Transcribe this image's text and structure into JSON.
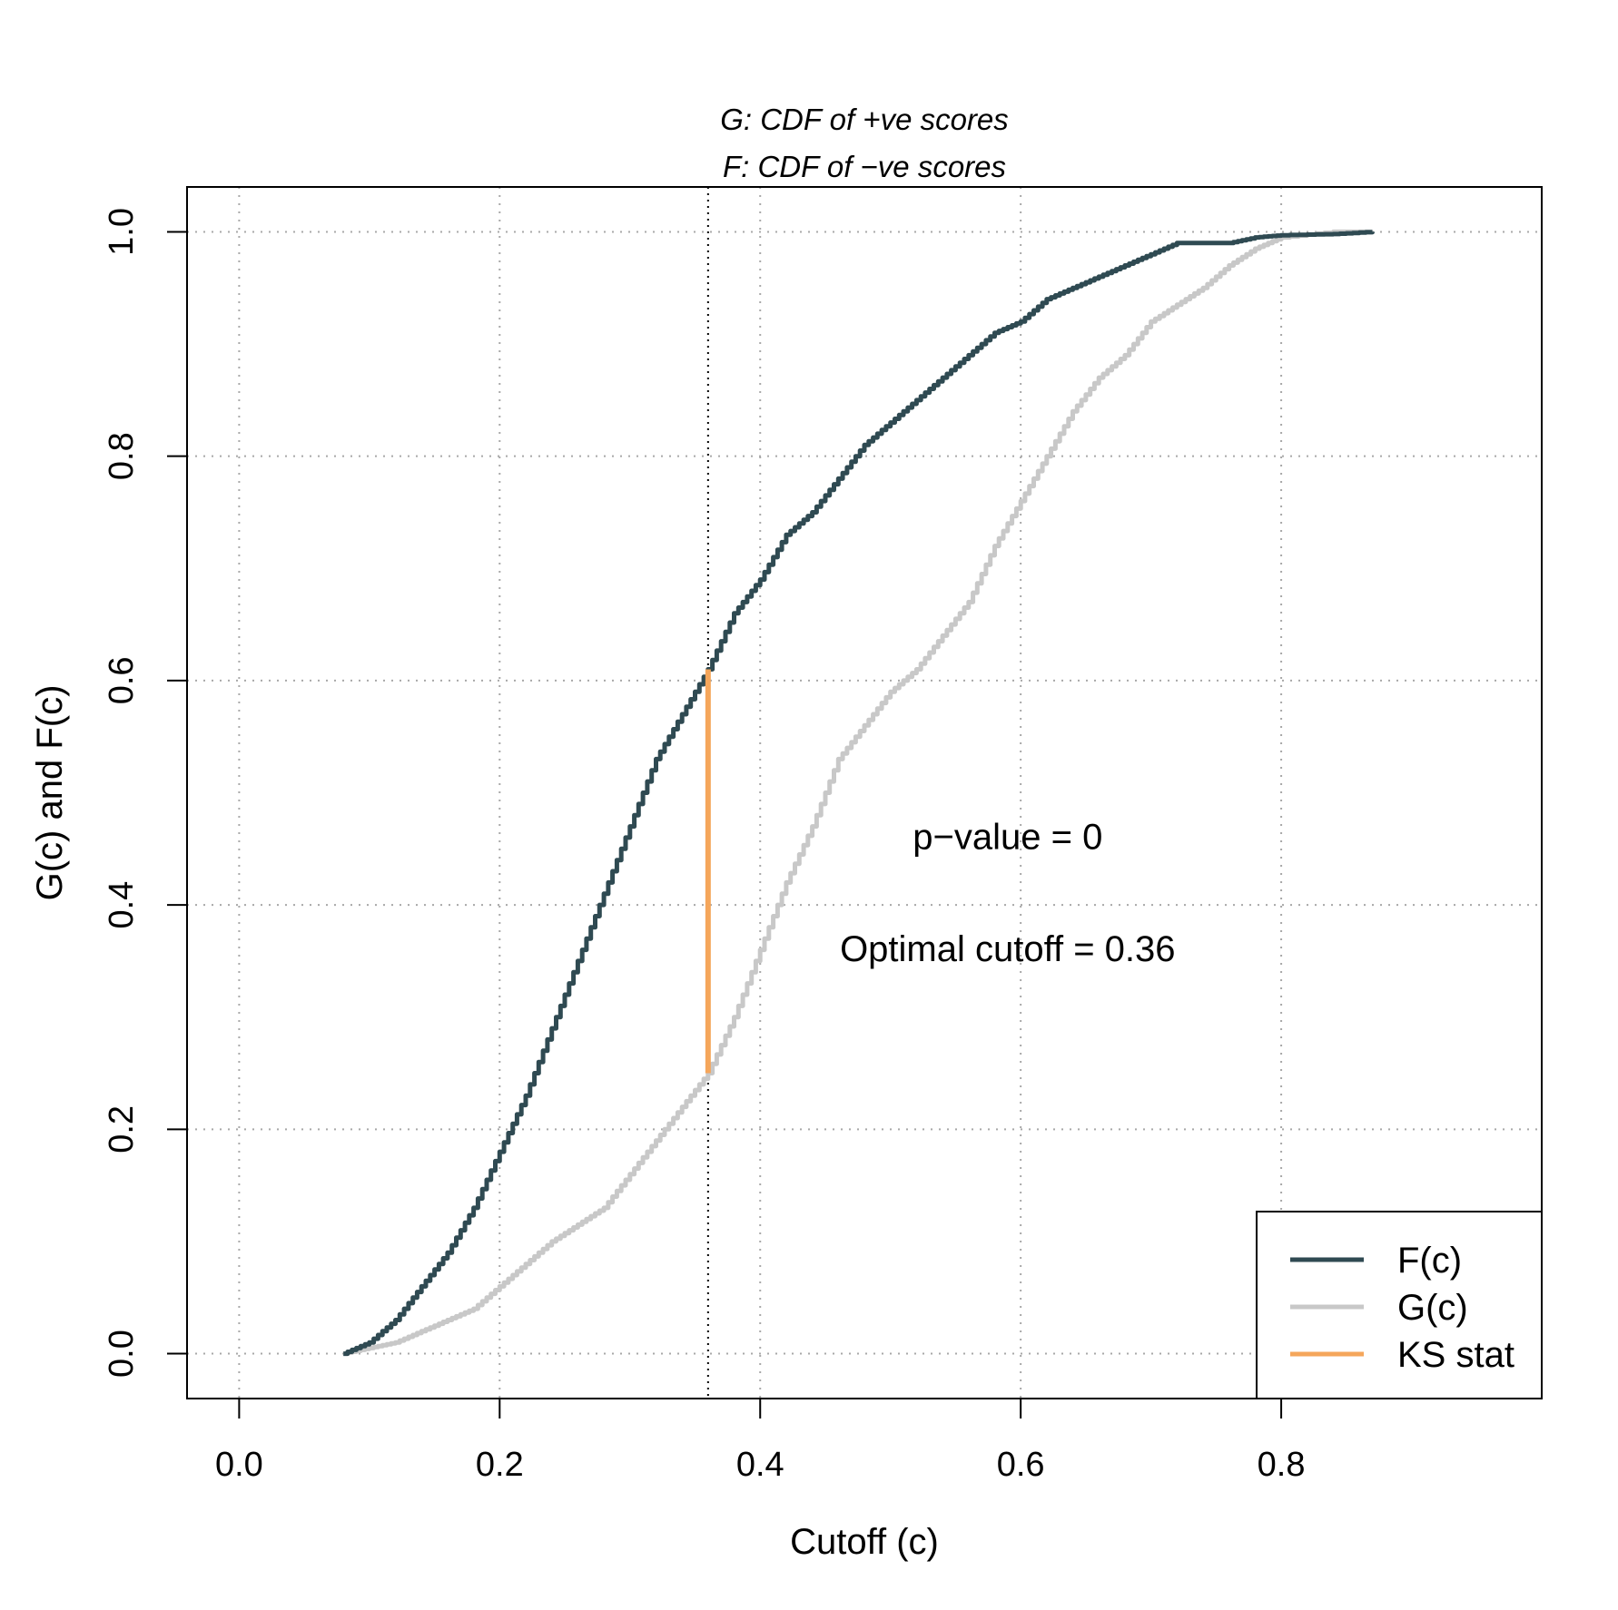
{
  "chart_data": {
    "type": "line",
    "subtitle_lines": [
      "G: CDF of +ve scores",
      "F: CDF of −ve scores"
    ],
    "xlabel": "Cutoff (c)",
    "ylabel": "G(c) and F(c)",
    "xlim": [
      -0.04,
      1.0
    ],
    "ylim": [
      -0.04,
      1.04
    ],
    "x_ticks": [
      0.0,
      0.2,
      0.4,
      0.6,
      0.8
    ],
    "x_tick_labels": [
      "0.0",
      "0.2",
      "0.4",
      "0.6",
      "0.8"
    ],
    "y_ticks": [
      0.0,
      0.2,
      0.4,
      0.6,
      0.8,
      1.0
    ],
    "y_tick_labels": [
      "0.0",
      "0.2",
      "0.4",
      "0.6",
      "0.8",
      "1.0"
    ],
    "grid": true,
    "grid_style": "dotted",
    "legend_position": "bottom-right",
    "colors": {
      "F": "#2f4a52",
      "G": "#c8c8c8",
      "KS": "#f5a65b",
      "grid": "#a8a8a8"
    },
    "series": [
      {
        "name": "F(c)",
        "x": [
          0.08,
          0.1,
          0.12,
          0.14,
          0.16,
          0.18,
          0.2,
          0.22,
          0.24,
          0.26,
          0.28,
          0.3,
          0.32,
          0.34,
          0.36,
          0.38,
          0.4,
          0.42,
          0.44,
          0.46,
          0.48,
          0.5,
          0.52,
          0.54,
          0.56,
          0.58,
          0.6,
          0.62,
          0.64,
          0.66,
          0.68,
          0.7,
          0.72,
          0.76,
          0.78,
          0.8,
          0.84,
          0.87
        ],
        "y": [
          0.0,
          0.01,
          0.03,
          0.06,
          0.09,
          0.13,
          0.18,
          0.23,
          0.29,
          0.35,
          0.41,
          0.47,
          0.53,
          0.57,
          0.61,
          0.66,
          0.69,
          0.73,
          0.75,
          0.78,
          0.81,
          0.83,
          0.85,
          0.87,
          0.89,
          0.91,
          0.92,
          0.94,
          0.95,
          0.96,
          0.97,
          0.98,
          0.99,
          0.99,
          0.995,
          0.997,
          0.998,
          1.0
        ]
      },
      {
        "name": "G(c)",
        "x": [
          0.08,
          0.1,
          0.12,
          0.14,
          0.16,
          0.18,
          0.2,
          0.22,
          0.24,
          0.26,
          0.28,
          0.3,
          0.32,
          0.34,
          0.36,
          0.38,
          0.4,
          0.42,
          0.44,
          0.46,
          0.48,
          0.5,
          0.52,
          0.54,
          0.56,
          0.58,
          0.6,
          0.62,
          0.64,
          0.66,
          0.68,
          0.7,
          0.72,
          0.74,
          0.76,
          0.78,
          0.8,
          0.84,
          0.87
        ],
        "y": [
          0.0,
          0.005,
          0.01,
          0.02,
          0.03,
          0.04,
          0.06,
          0.08,
          0.1,
          0.115,
          0.13,
          0.16,
          0.19,
          0.22,
          0.25,
          0.3,
          0.36,
          0.42,
          0.47,
          0.53,
          0.56,
          0.59,
          0.61,
          0.64,
          0.67,
          0.72,
          0.76,
          0.8,
          0.84,
          0.87,
          0.89,
          0.92,
          0.935,
          0.95,
          0.97,
          0.985,
          0.995,
          1.0,
          1.0
        ]
      }
    ],
    "ks_stat": {
      "name": "KS stat",
      "x": 0.36,
      "y_low": 0.25,
      "y_high": 0.61
    },
    "cutoff_line_x": 0.36,
    "annotations": [
      {
        "text": "p−value = 0",
        "x": 0.59,
        "y": 0.45
      },
      {
        "text": "Optimal cutoff = 0.36",
        "x": 0.59,
        "y": 0.35
      }
    ]
  }
}
